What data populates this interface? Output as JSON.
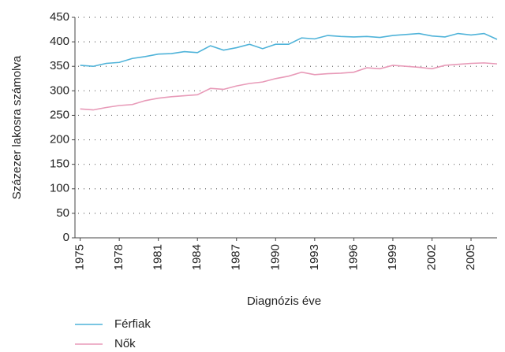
{
  "chart_data": {
    "type": "line",
    "ylabel": "Százezer lakosra számolva",
    "xlabel": "Diagnózis éve",
    "x": [
      1975,
      1976,
      1977,
      1978,
      1979,
      1980,
      1981,
      1982,
      1983,
      1984,
      1985,
      1986,
      1987,
      1988,
      1989,
      1990,
      1991,
      1992,
      1993,
      1994,
      1995,
      1996,
      1997,
      1998,
      1999,
      2000,
      2001,
      2002,
      2003,
      2004,
      2005,
      2006,
      2007
    ],
    "series": [
      {
        "name": "Férfiak",
        "color": "#4fb3d9",
        "values": [
          352,
          350,
          356,
          358,
          366,
          370,
          375,
          376,
          380,
          378,
          392,
          383,
          388,
          395,
          386,
          395,
          395,
          408,
          406,
          413,
          411,
          410,
          411,
          409,
          413,
          415,
          417,
          412,
          410,
          417,
          414,
          417,
          405
        ]
      },
      {
        "name": "Nők",
        "color": "#e89ab8",
        "values": [
          263,
          261,
          266,
          270,
          272,
          280,
          285,
          288,
          290,
          292,
          305,
          303,
          310,
          315,
          318,
          325,
          330,
          338,
          333,
          335,
          336,
          338,
          347,
          345,
          352,
          350,
          348,
          345,
          352,
          354,
          356,
          357,
          355
        ]
      }
    ],
    "xlim": [
      1974.6,
      2007
    ],
    "xticks": [
      1975,
      1978,
      1981,
      1984,
      1987,
      1990,
      1993,
      1996,
      1999,
      2002,
      2005
    ],
    "ylim": [
      0,
      450
    ],
    "yticks": [
      0,
      50,
      100,
      150,
      200,
      250,
      300,
      350,
      400,
      450
    ],
    "grid": true,
    "legend": "bottom-left"
  }
}
